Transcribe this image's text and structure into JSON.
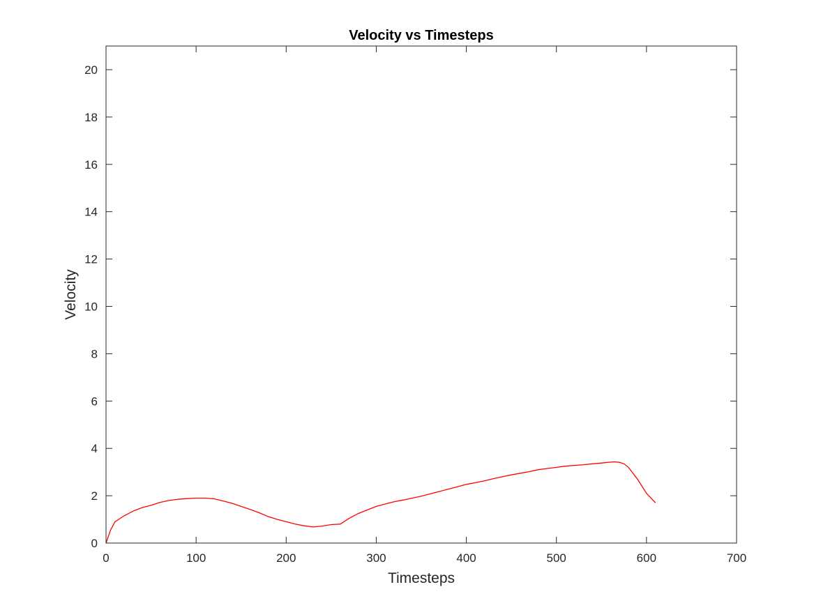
{
  "chart_data": {
    "type": "line",
    "title": "Velocity vs Timesteps",
    "xlabel": "Timesteps",
    "ylabel": "Velocity",
    "xlim": [
      0,
      700
    ],
    "ylim": [
      0,
      21
    ],
    "xticks": [
      0,
      100,
      200,
      300,
      400,
      500,
      600,
      700
    ],
    "yticks": [
      0,
      2,
      4,
      6,
      8,
      10,
      12,
      14,
      16,
      18,
      20
    ],
    "grid": false,
    "legend": "none",
    "series": [
      {
        "color": "#ff0000",
        "x": [
          0,
          5,
          10,
          20,
          30,
          40,
          50,
          60,
          70,
          80,
          90,
          100,
          110,
          120,
          130,
          140,
          150,
          160,
          170,
          180,
          190,
          200,
          210,
          220,
          230,
          240,
          250,
          260,
          270,
          280,
          290,
          300,
          310,
          320,
          330,
          340,
          350,
          360,
          370,
          380,
          390,
          400,
          410,
          420,
          430,
          440,
          450,
          460,
          470,
          480,
          490,
          500,
          510,
          520,
          530,
          540,
          550,
          560,
          565,
          570,
          575,
          580,
          590,
          600,
          610
        ],
        "y": [
          0.0,
          0.55,
          0.9,
          1.15,
          1.35,
          1.5,
          1.6,
          1.72,
          1.8,
          1.85,
          1.88,
          1.9,
          1.9,
          1.87,
          1.78,
          1.68,
          1.55,
          1.42,
          1.28,
          1.12,
          1.0,
          0.9,
          0.8,
          0.73,
          0.68,
          0.72,
          0.78,
          0.8,
          1.05,
          1.25,
          1.4,
          1.55,
          1.65,
          1.75,
          1.82,
          1.9,
          1.98,
          2.08,
          2.18,
          2.28,
          2.38,
          2.48,
          2.55,
          2.63,
          2.72,
          2.8,
          2.88,
          2.95,
          3.02,
          3.1,
          3.15,
          3.2,
          3.25,
          3.28,
          3.31,
          3.35,
          3.38,
          3.42,
          3.43,
          3.41,
          3.35,
          3.2,
          2.7,
          2.1,
          1.7
        ]
      }
    ]
  }
}
